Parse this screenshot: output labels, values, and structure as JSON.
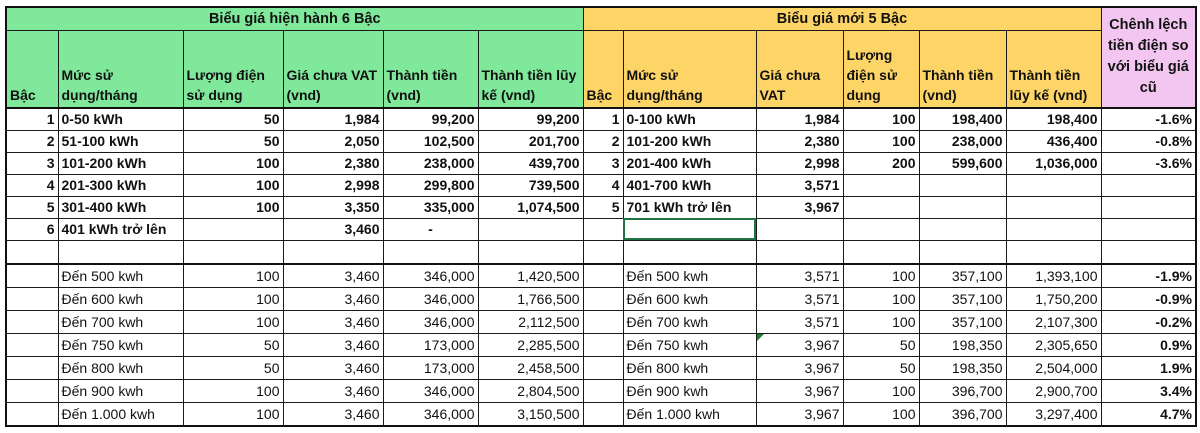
{
  "old_tariff": {
    "title": "Biểu giá hiện hành 6 Bậc",
    "headers": [
      "Bậc",
      "Mức sử dụng/tháng",
      "Lượng điện sử dụng",
      "Giá chưa VAT (vnd)",
      "Thành tiền (vnd)",
      "Thành tiền lũy kế (vnd)"
    ],
    "tiers": [
      {
        "tier": "1",
        "range": "0-50 kWh",
        "qty": "50",
        "price": "1,984",
        "amount": "99,200",
        "cumulative": "99,200"
      },
      {
        "tier": "2",
        "range": "51-100 kWh",
        "qty": "50",
        "price": "2,050",
        "amount": "102,500",
        "cumulative": "201,700"
      },
      {
        "tier": "3",
        "range": "101-200 kWh",
        "qty": "100",
        "price": "2,380",
        "amount": "238,000",
        "cumulative": "439,700"
      },
      {
        "tier": "4",
        "range": "201-300 kWh",
        "qty": "100",
        "price": "2,998",
        "amount": "299,800",
        "cumulative": "739,500"
      },
      {
        "tier": "5",
        "range": "301-400 kWh",
        "qty": "100",
        "price": "3,350",
        "amount": "335,000",
        "cumulative": "1,074,500"
      },
      {
        "tier": "6",
        "range": "401 kWh trở lên",
        "qty": "",
        "price": "3,460",
        "amount": "-",
        "cumulative": ""
      }
    ],
    "extended": [
      {
        "range": "Đến 500 kwh",
        "qty": "100",
        "price": "3,460",
        "amount": "346,000",
        "cumulative": "1,420,500"
      },
      {
        "range": "Đến 600 kwh",
        "qty": "100",
        "price": "3,460",
        "amount": "346,000",
        "cumulative": "1,766,500"
      },
      {
        "range": "Đến 700 kwh",
        "qty": "100",
        "price": "3,460",
        "amount": "346,000",
        "cumulative": "2,112,500"
      },
      {
        "range": "Đến 750 kwh",
        "qty": "50",
        "price": "3,460",
        "amount": "173,000",
        "cumulative": "2,285,500"
      },
      {
        "range": "Đến 800 kwh",
        "qty": "50",
        "price": "3,460",
        "amount": "173,000",
        "cumulative": "2,458,500"
      },
      {
        "range": "Đến 900 kwh",
        "qty": "100",
        "price": "3,460",
        "amount": "346,000",
        "cumulative": "2,804,500"
      },
      {
        "range": "Đến 1.000 kwh",
        "qty": "100",
        "price": "3,460",
        "amount": "346,000",
        "cumulative": "3,150,500"
      }
    ]
  },
  "new_tariff": {
    "title": "Biểu giá mới 5 Bậc",
    "headers": [
      "Bậc",
      "Mức sử dụng/tháng",
      "Giá chưa VAT",
      "Lượng điện sử dụng",
      "Thành tiền (vnd)",
      "Thành tiền lũy kế (vnd)"
    ],
    "tiers": [
      {
        "tier": "1",
        "range": "0-100 kWh",
        "price": "1,984",
        "qty": "100",
        "amount": "198,400",
        "cumulative": "198,400"
      },
      {
        "tier": "2",
        "range": "101-200 kWh",
        "price": "2,380",
        "qty": "100",
        "amount": "238,000",
        "cumulative": "436,400"
      },
      {
        "tier": "3",
        "range": "201-400 kWh",
        "price": "2,998",
        "qty": "200",
        "amount": "599,600",
        "cumulative": "1,036,000"
      },
      {
        "tier": "4",
        "range": "401-700 kWh",
        "price": "3,571",
        "qty": "",
        "amount": "",
        "cumulative": ""
      },
      {
        "tier": "5",
        "range": "701 kWh trở lên",
        "price": "3,967",
        "qty": "",
        "amount": "",
        "cumulative": ""
      },
      {
        "tier": "",
        "range": "",
        "price": "",
        "qty": "",
        "amount": "",
        "cumulative": ""
      }
    ],
    "extended": [
      {
        "range": "Đến 500 kwh",
        "price": "3,571",
        "qty": "100",
        "amount": "357,100",
        "cumulative": "1,393,100"
      },
      {
        "range": "Đến 600 kwh",
        "price": "3,571",
        "qty": "100",
        "amount": "357,100",
        "cumulative": "1,750,200"
      },
      {
        "range": "Đến 700 kwh",
        "price": "3,571",
        "qty": "100",
        "amount": "357,100",
        "cumulative": "2,107,300"
      },
      {
        "range": "Đến 750 kwh",
        "price": "3,967",
        "qty": "50",
        "amount": "198,350",
        "cumulative": "2,305,650"
      },
      {
        "range": "Đến 800 kwh",
        "price": "3,967",
        "qty": "50",
        "amount": "198,350",
        "cumulative": "2,504,000"
      },
      {
        "range": "Đến 900 kwh",
        "price": "3,967",
        "qty": "100",
        "amount": "396,700",
        "cumulative": "2,900,700"
      },
      {
        "range": "Đến 1.000 kwh",
        "price": "3,967",
        "qty": "100",
        "amount": "396,700",
        "cumulative": "3,297,400"
      }
    ]
  },
  "difference": {
    "header": "Chênh lệch tiền điện so với biểu giá cũ",
    "tiers": [
      "-1.6%",
      "-0.8%",
      "-3.6%",
      "",
      "",
      ""
    ],
    "extended": [
      "-1.9%",
      "-0.9%",
      "-0.2%",
      "0.9%",
      "1.9%",
      "3.4%",
      "4.7%"
    ]
  },
  "colors": {
    "old_header_bg": "#7fe89a",
    "new_header_bg": "#fdd466",
    "diff_header_bg": "#f2c6f0",
    "selection": "#217346"
  }
}
